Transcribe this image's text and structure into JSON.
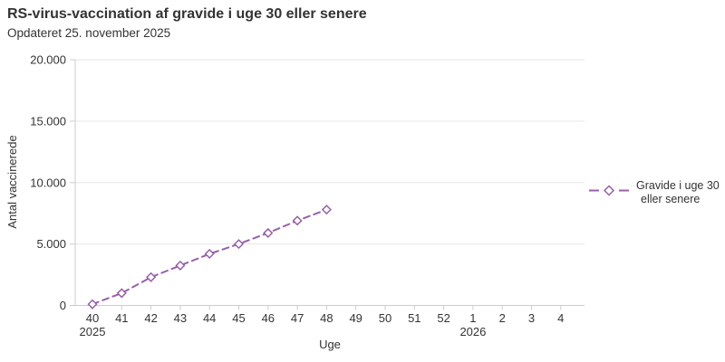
{
  "header": {
    "title": "RS-virus-vaccination af gravide i uge 30 eller senere",
    "subtitle": "Opdateret 25. november 2025"
  },
  "chart_data": {
    "type": "line",
    "title": "RS-virus-vaccination af gravide i uge 30 eller senere",
    "subtitle": "Opdateret 25. november 2025",
    "xlabel": "Uge",
    "ylabel": "Antal vaccinerede",
    "categories": [
      "40",
      "41",
      "42",
      "43",
      "44",
      "45",
      "46",
      "47",
      "48",
      "49",
      "50",
      "51",
      "52",
      "1",
      "2",
      "3",
      "4"
    ],
    "x_year_labels": [
      {
        "index": 0,
        "label": "2025"
      },
      {
        "index": 13,
        "label": "2026"
      }
    ],
    "ylim": [
      0,
      20000
    ],
    "yticks": [
      0,
      5000,
      10000,
      15000,
      20000
    ],
    "ytick_labels": [
      "0",
      "5.000",
      "10.000",
      "15.000",
      "20.000"
    ],
    "grid": "horizontal",
    "legend_position": "right-middle",
    "series": [
      {
        "name": "Gravide i uge 30 eller senere",
        "legend_lines": [
          "Gravide i uge 30",
          "eller senere"
        ],
        "color": "#9760a8",
        "line_style": "dashed",
        "marker": "open-diamond",
        "values": [
          100,
          1000,
          2300,
          3250,
          4200,
          5000,
          5900,
          6900,
          7800,
          null,
          null,
          null,
          null,
          null,
          null,
          null,
          null
        ]
      }
    ]
  },
  "colors": {
    "series_purple": "#9760a8",
    "marker_fill": "#ffffff",
    "axis_line": "#cccccc",
    "gridline": "#e6e6e6",
    "text": "#333333",
    "background": "#ffffff"
  }
}
